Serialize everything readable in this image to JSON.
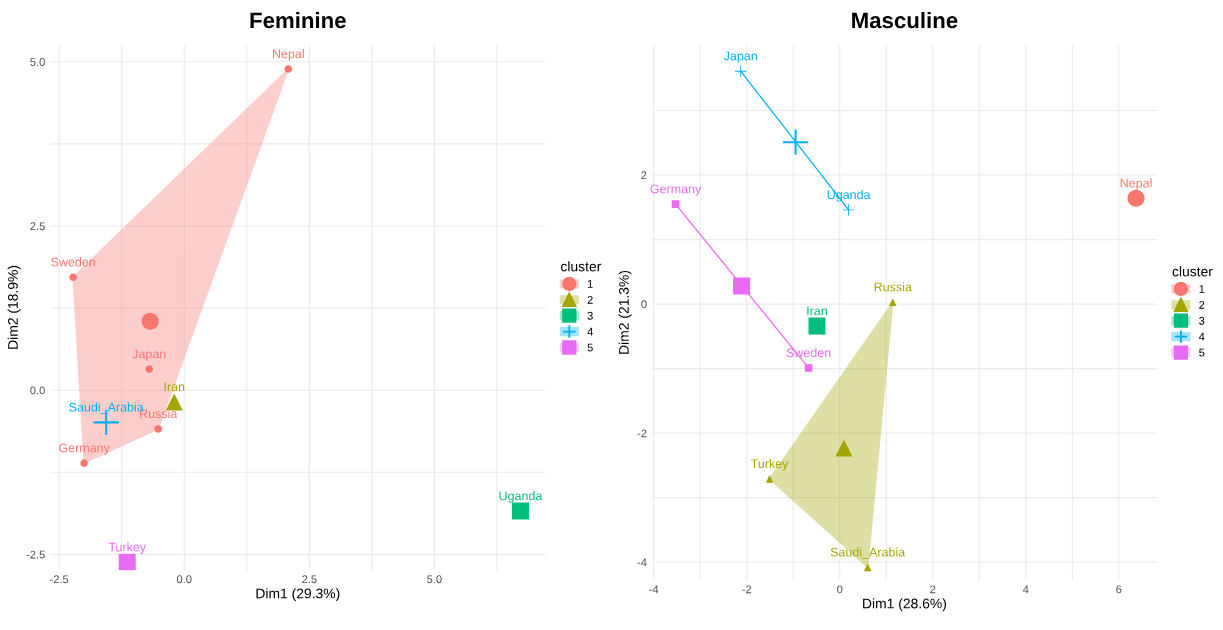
{
  "chart_data": [
    {
      "type": "scatter",
      "title": "Feminine",
      "xlabel": "Dim1 (29.3%)",
      "ylabel": "Dim2 (18.9%)",
      "legend_title": "cluster",
      "legend": "right",
      "grid": true,
      "xlim": [
        -2.68,
        7.22
      ],
      "ylim": [
        -2.74,
        5.26
      ],
      "xticks": [
        -2.5,
        {
          "value": -1.25,
          "label": null
        },
        {
          "value": 0,
          "label": "0.0"
        },
        {
          "value": 1.25,
          "label": null
        },
        2.5,
        {
          "value": 3.75,
          "label": null
        },
        {
          "value": 5,
          "label": "5.0"
        },
        {
          "value": 6.25,
          "label": null
        }
      ],
      "yticks": [
        -2.5,
        {
          "value": -1.25,
          "label": null
        },
        {
          "value": 0,
          "label": "0.0"
        },
        {
          "value": 1.25,
          "label": null
        },
        2.5,
        {
          "value": 3.75,
          "label": null
        },
        {
          "value": 5,
          "label": "5.0"
        }
      ],
      "series": [
        {
          "type": "area",
          "color": "#f8766d",
          "x": [
            2.08,
            -2.22,
            -2.0,
            -0.52,
            2.08
          ],
          "values": [
            4.89,
            1.72,
            -1.11,
            -0.59,
            4.89
          ]
        },
        {
          "name": "1",
          "color": "#f8766d",
          "marker": "circle",
          "x": [
            2.08,
            -2.22,
            -0.7,
            -0.52,
            -2.0
          ],
          "values": [
            4.89,
            1.72,
            0.32,
            -0.59,
            -1.11
          ]
        },
        {
          "name": "2",
          "color": "#a3a500",
          "marker": "triangle",
          "x": [
            -0.2
          ],
          "values": [
            -0.18
          ]
        },
        {
          "name": "3",
          "color": "#00bf7d",
          "marker": "square",
          "x": [
            6.72
          ],
          "values": [
            -1.84
          ]
        },
        {
          "name": "4",
          "color": "#00b0f6",
          "marker": "cross",
          "x": [
            -1.56
          ],
          "values": [
            -0.49
          ]
        },
        {
          "name": "5",
          "color": "#e76bf3",
          "marker": "square",
          "x": [
            -1.14
          ],
          "values": [
            -2.62
          ]
        },
        {
          "color": "#f8766d",
          "marker": "circle",
          "x": [
            -0.68
          ],
          "values": [
            1.05
          ]
        }
      ],
      "annotations": [
        {
          "text": "Nepal",
          "x": 2.08,
          "y": 4.89
        },
        {
          "text": "Sweden",
          "x": -2.22,
          "y": 1.72
        },
        {
          "text": "Japan",
          "x": -0.7,
          "y": 0.32
        },
        {
          "text": "Russia",
          "x": -0.52,
          "y": -0.59
        },
        {
          "text": "Germany",
          "x": -2.0,
          "y": -1.11
        },
        {
          "text": "Iran",
          "x": -0.2,
          "y": -0.18
        },
        {
          "text": "Uganda",
          "x": 6.72,
          "y": -1.84
        },
        {
          "text": "Saudi_Arabia",
          "x": -1.56,
          "y": -0.49
        },
        {
          "text": "Turkey",
          "x": -1.14,
          "y": -2.62
        }
      ]
    },
    {
      "type": "scatter",
      "title": "Masculine",
      "xlabel": "Dim1 (28.6%)",
      "ylabel": "Dim2 (21.3%)",
      "legend_title": "cluster",
      "legend": "right",
      "grid": true,
      "xlim": [
        -4.04,
        6.82
      ],
      "ylim": [
        -4.28,
        4.02
      ],
      "xticks": [
        -4,
        {
          "value": -3,
          "label": null
        },
        -2,
        {
          "value": -1,
          "label": null
        },
        0,
        {
          "value": 1,
          "label": null
        },
        2,
        {
          "value": 3,
          "label": null
        },
        4,
        {
          "value": 5,
          "label": null
        },
        6
      ],
      "yticks": [
        -4,
        {
          "value": -3,
          "label": null
        },
        -2,
        {
          "value": -1,
          "label": null
        },
        0,
        {
          "value": 1,
          "label": null
        },
        2,
        {
          "value": 3,
          "label": null
        }
      ],
      "series": [
        {
          "type": "area",
          "color": "#a3a500",
          "x": [
            1.14,
            -1.51,
            0.6,
            1.14
          ],
          "values": [
            0.03,
            -2.71,
            -4.08,
            0.03
          ]
        },
        {
          "name": "1",
          "color": "#f8766d",
          "marker": "circle",
          "x": [
            6.37
          ],
          "values": [
            1.64
          ]
        },
        {
          "name": "2",
          "color": "#a3a500",
          "marker": "triangle",
          "x": [
            1.14,
            -1.51,
            0.6
          ],
          "values": [
            0.03,
            -2.71,
            -4.08
          ]
        },
        {
          "name": "3",
          "color": "#00bf7d",
          "marker": "square",
          "x": [
            -0.49
          ],
          "values": [
            -0.34
          ]
        },
        {
          "type": "line",
          "name": "4",
          "color": "#00b0f6",
          "marker": "cross",
          "x": [
            -2.13,
            0.19
          ],
          "values": [
            3.61,
            1.46
          ]
        },
        {
          "type": "line",
          "name": "5",
          "color": "#e76bf3",
          "marker": "square",
          "x": [
            -3.53,
            -0.67
          ],
          "values": [
            1.55,
            -0.99
          ]
        },
        {
          "color": "#a3a500",
          "marker": "triangle",
          "x": [
            0.09
          ],
          "values": [
            -2.23
          ]
        },
        {
          "color": "#00b0f6",
          "marker": "cross",
          "x": [
            -0.95
          ],
          "values": [
            2.51
          ]
        },
        {
          "color": "#e76bf3",
          "marker": "square",
          "x": [
            -2.11
          ],
          "values": [
            0.28
          ]
        }
      ],
      "annotations": [
        {
          "text": "Japan",
          "x": -2.13,
          "y": 3.61
        },
        {
          "text": "Uganda",
          "x": 0.19,
          "y": 1.46
        },
        {
          "text": "Germany",
          "x": -3.53,
          "y": 1.55
        },
        {
          "text": "Nepal",
          "x": 6.37,
          "y": 1.64
        },
        {
          "text": "Iran",
          "x": -0.49,
          "y": -0.34
        },
        {
          "text": "Russia",
          "x": 1.14,
          "y": 0.03
        },
        {
          "text": "Sweden",
          "x": -0.67,
          "y": -0.99
        },
        {
          "text": "Turkey",
          "x": -1.51,
          "y": -2.71
        },
        {
          "text": "Saudi_Arabia",
          "x": 0.6,
          "y": -4.08
        }
      ]
    }
  ]
}
